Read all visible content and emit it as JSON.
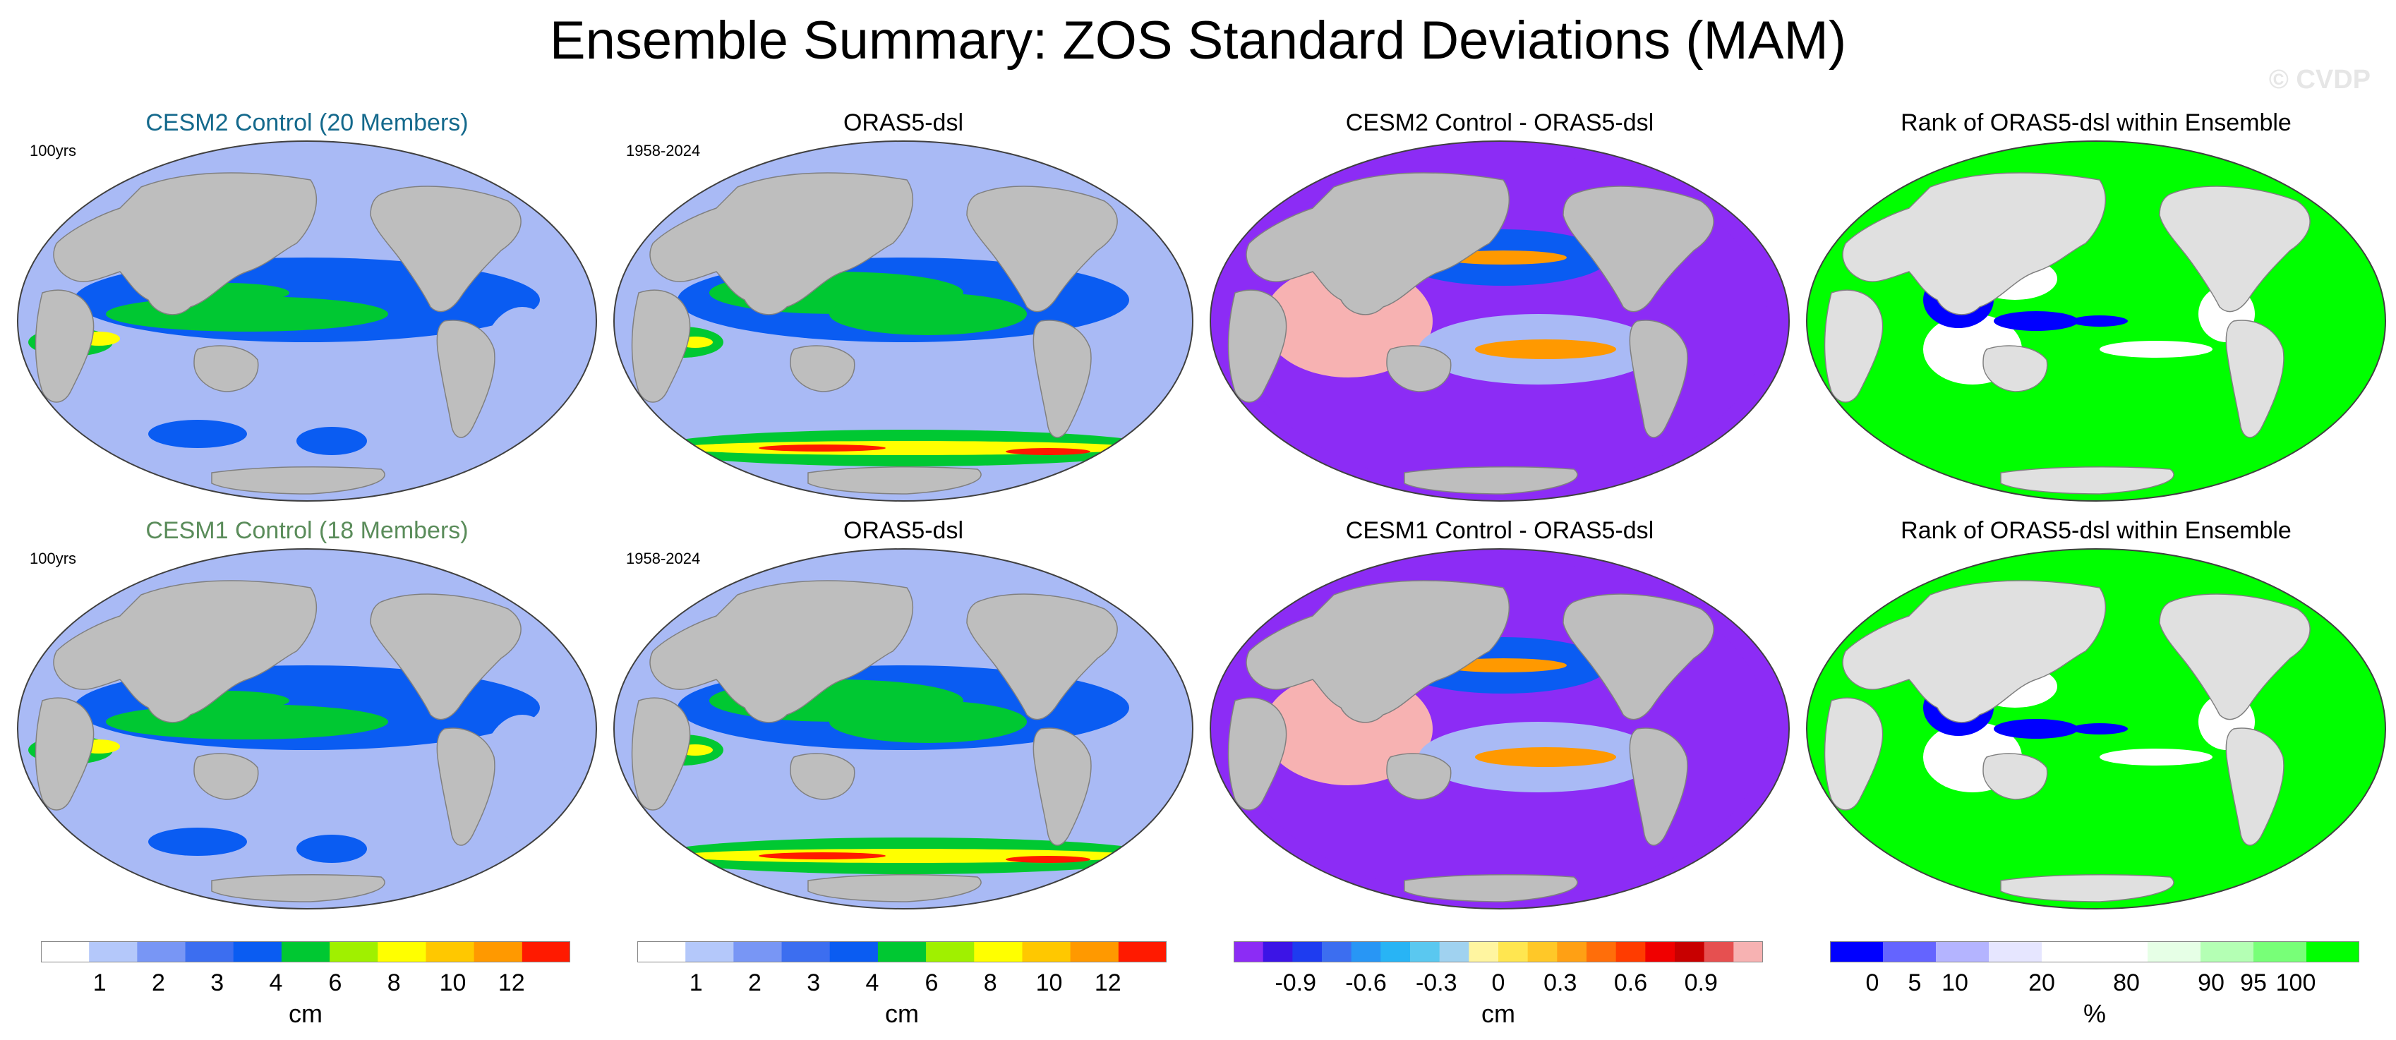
{
  "title": "Ensemble Summary: ZOS Standard Deviations (MAM)",
  "watermark": "© CVDP",
  "colors": {
    "land": "#bebebe",
    "land_rank": "#e0e0e0",
    "blue": "#0a5cf2",
    "light_blue": "#a9baf5",
    "green": "#00c832",
    "yellow": "#ffff00",
    "orange": "#ff9900",
    "red": "#ff1a00",
    "purple": "#8c2cf5",
    "pink": "#f7b2b2",
    "rank_green": "#00ff00",
    "rank_blue": "#0000ff"
  },
  "rows": [
    {
      "panels": [
        {
          "title": "CESM2 Control (20 Members)",
          "title_color": "#14698c",
          "period": "100yrs",
          "style": "std_model"
        },
        {
          "title": "ORAS5-dsl",
          "title_color": "#000000",
          "period": "1958-2024",
          "style": "std_obs"
        },
        {
          "title": "CESM2 Control - ORAS5-dsl",
          "title_color": "#000000",
          "period": "",
          "style": "diff"
        },
        {
          "title": "Rank of ORAS5-dsl within Ensemble",
          "title_color": "#000000",
          "period": "",
          "style": "rank"
        }
      ]
    },
    {
      "panels": [
        {
          "title": "CESM1 Control (18 Members)",
          "title_color": "#5a8c5a",
          "period": "100yrs",
          "style": "std_model"
        },
        {
          "title": "ORAS5-dsl",
          "title_color": "#000000",
          "period": "1958-2024",
          "style": "std_obs"
        },
        {
          "title": "CESM1 Control - ORAS5-dsl",
          "title_color": "#000000",
          "period": "",
          "style": "diff"
        },
        {
          "title": "Rank of ORAS5-dsl within Ensemble",
          "title_color": "#000000",
          "period": "",
          "style": "rank"
        }
      ]
    }
  ],
  "colorbars": [
    {
      "unit": "cm",
      "colors": [
        "#ffffff",
        "#b4c8fa",
        "#7896f5",
        "#3c6ef0",
        "#0a5cf2",
        "#00c832",
        "#a0f000",
        "#ffff00",
        "#ffc800",
        "#ff9900",
        "#ff1a00"
      ],
      "ticks": [
        "1",
        "2",
        "3",
        "4",
        "6",
        "8",
        "10",
        "12"
      ]
    },
    {
      "unit": "cm",
      "colors": [
        "#ffffff",
        "#b4c8fa",
        "#7896f5",
        "#3c6ef0",
        "#0a5cf2",
        "#00c832",
        "#a0f000",
        "#ffff00",
        "#ffc800",
        "#ff9900",
        "#ff1a00"
      ],
      "ticks": [
        "1",
        "2",
        "3",
        "4",
        "6",
        "8",
        "10",
        "12"
      ]
    },
    {
      "unit": "cm",
      "colors": [
        "#8c2cf5",
        "#3c14e6",
        "#1e3cf0",
        "#3c6ef0",
        "#2896f5",
        "#28b4f5",
        "#5ac8f0",
        "#a0d2f0",
        "#fff5a0",
        "#ffe650",
        "#ffc828",
        "#ffa014",
        "#ff6e0a",
        "#ff3c00",
        "#f00000",
        "#c80000",
        "#e65050",
        "#f7b2b2"
      ],
      "ticks": [
        "-0.9",
        "-0.6",
        "-0.3",
        "0",
        "0.3",
        "0.6",
        "0.9"
      ]
    },
    {
      "unit": "%",
      "colors": [
        "#0000ff",
        "#6464ff",
        "#b4b4ff",
        "#e6e6ff",
        "#ffffff",
        "#ffffff",
        "#e6ffe6",
        "#b4ffb4",
        "#78ff78",
        "#00ff00"
      ],
      "ticks": [
        "0",
        "5",
        "10",
        "20",
        "80",
        "90",
        "95",
        "100"
      ]
    }
  ]
}
